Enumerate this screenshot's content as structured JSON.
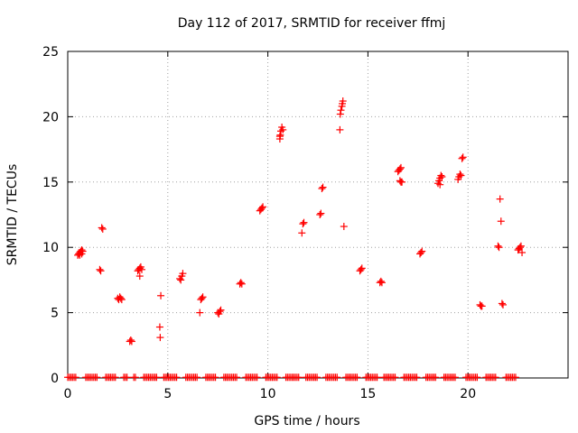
{
  "chart_data": {
    "type": "scatter",
    "title": "Day 112 of 2017, SRMTID for receiver ffmj",
    "xlabel": "GPS time / hours",
    "ylabel": "SRMTID / TECUs",
    "xlim": [
      0,
      25
    ],
    "ylim": [
      0,
      25
    ],
    "xticks": [
      0,
      5,
      10,
      15,
      20
    ],
    "yticks": [
      0,
      5,
      10,
      15,
      20,
      25
    ],
    "grid": true,
    "marker": "+",
    "color": "#ff0000",
    "series": [
      {
        "name": "SRMTID",
        "points": [
          [
            0.5,
            9.4
          ],
          [
            0.55,
            9.5
          ],
          [
            0.6,
            9.6
          ],
          [
            0.65,
            9.7
          ],
          [
            0.7,
            9.8
          ],
          [
            0.75,
            9.7
          ],
          [
            0.6,
            9.4
          ],
          [
            0.7,
            9.5
          ],
          [
            1.6,
            8.3
          ],
          [
            1.65,
            8.2
          ],
          [
            1.7,
            11.5
          ],
          [
            1.75,
            11.4
          ],
          [
            2.5,
            6.1
          ],
          [
            2.55,
            6.0
          ],
          [
            2.6,
            6.2
          ],
          [
            2.65,
            6.1
          ],
          [
            2.7,
            6.0
          ],
          [
            3.1,
            2.8
          ],
          [
            3.15,
            2.9
          ],
          [
            3.2,
            2.8
          ],
          [
            3.5,
            8.2
          ],
          [
            3.55,
            8.3
          ],
          [
            3.6,
            8.4
          ],
          [
            3.65,
            8.5
          ],
          [
            3.7,
            8.3
          ],
          [
            3.6,
            7.8
          ],
          [
            4.6,
            3.9
          ],
          [
            4.62,
            3.1
          ],
          [
            4.65,
            6.3
          ],
          [
            5.6,
            7.6
          ],
          [
            5.65,
            7.5
          ],
          [
            5.7,
            7.8
          ],
          [
            5.75,
            8.0
          ],
          [
            6.6,
            5.0
          ],
          [
            6.65,
            6.0
          ],
          [
            6.7,
            6.1
          ],
          [
            6.75,
            6.2
          ],
          [
            7.5,
            5.0
          ],
          [
            7.55,
            4.9
          ],
          [
            7.6,
            5.1
          ],
          [
            7.65,
            5.2
          ],
          [
            8.6,
            7.2
          ],
          [
            8.65,
            7.3
          ],
          [
            8.7,
            7.2
          ],
          [
            9.6,
            12.8
          ],
          [
            9.65,
            12.9
          ],
          [
            9.7,
            13.0
          ],
          [
            9.75,
            13.1
          ],
          [
            10.6,
            18.3
          ],
          [
            10.62,
            18.6
          ],
          [
            10.65,
            18.9
          ],
          [
            10.7,
            19.2
          ],
          [
            10.75,
            19.0
          ],
          [
            10.6,
            18.5
          ],
          [
            11.7,
            11.1
          ],
          [
            11.75,
            11.8
          ],
          [
            11.8,
            11.9
          ],
          [
            12.6,
            12.5
          ],
          [
            12.65,
            12.6
          ],
          [
            12.7,
            14.5
          ],
          [
            12.75,
            14.6
          ],
          [
            13.6,
            19.0
          ],
          [
            13.62,
            20.2
          ],
          [
            13.65,
            20.5
          ],
          [
            13.7,
            20.8
          ],
          [
            13.72,
            21.0
          ],
          [
            13.75,
            21.2
          ],
          [
            13.8,
            11.6
          ],
          [
            14.6,
            8.2
          ],
          [
            14.65,
            8.3
          ],
          [
            14.7,
            8.4
          ],
          [
            15.6,
            7.3
          ],
          [
            15.65,
            7.4
          ],
          [
            15.7,
            7.3
          ],
          [
            16.5,
            15.8
          ],
          [
            16.55,
            15.9
          ],
          [
            16.6,
            16.0
          ],
          [
            16.65,
            16.1
          ],
          [
            16.6,
            15.1
          ],
          [
            16.65,
            15.0
          ],
          [
            16.7,
            15.0
          ],
          [
            17.6,
            9.5
          ],
          [
            17.65,
            9.6
          ],
          [
            17.7,
            9.7
          ],
          [
            18.5,
            14.9
          ],
          [
            18.55,
            15.1
          ],
          [
            18.6,
            15.3
          ],
          [
            18.65,
            15.5
          ],
          [
            18.7,
            15.4
          ],
          [
            18.6,
            14.8
          ],
          [
            19.5,
            15.2
          ],
          [
            19.55,
            15.4
          ],
          [
            19.6,
            15.6
          ],
          [
            19.65,
            15.5
          ],
          [
            19.7,
            16.8
          ],
          [
            19.75,
            16.9
          ],
          [
            20.6,
            5.6
          ],
          [
            20.65,
            5.5
          ],
          [
            20.7,
            5.5
          ],
          [
            21.5,
            10.1
          ],
          [
            21.55,
            10.0
          ],
          [
            21.6,
            13.7
          ],
          [
            21.65,
            12.0
          ],
          [
            21.7,
            5.7
          ],
          [
            21.75,
            5.6
          ],
          [
            22.5,
            9.8
          ],
          [
            22.55,
            9.9
          ],
          [
            22.6,
            10.0
          ],
          [
            22.65,
            10.1
          ],
          [
            22.7,
            9.6
          ]
        ]
      }
    ],
    "baseline": {
      "y": 0.05,
      "segments": [
        [
          0.0,
          0.4
        ],
        [
          0.9,
          1.5
        ],
        [
          1.9,
          2.4
        ],
        [
          2.8,
          3.0
        ],
        [
          3.3,
          3.4
        ],
        [
          3.8,
          4.5
        ],
        [
          4.8,
          5.5
        ],
        [
          5.9,
          6.5
        ],
        [
          6.9,
          7.4
        ],
        [
          7.8,
          8.5
        ],
        [
          8.9,
          9.5
        ],
        [
          9.9,
          10.5
        ],
        [
          10.9,
          11.6
        ],
        [
          11.9,
          12.5
        ],
        [
          12.9,
          13.5
        ],
        [
          13.9,
          14.5
        ],
        [
          14.9,
          15.5
        ],
        [
          15.8,
          16.4
        ],
        [
          16.8,
          17.5
        ],
        [
          17.9,
          18.4
        ],
        [
          18.8,
          19.4
        ],
        [
          19.9,
          20.5
        ],
        [
          20.9,
          21.4
        ],
        [
          21.9,
          22.4
        ]
      ]
    }
  }
}
